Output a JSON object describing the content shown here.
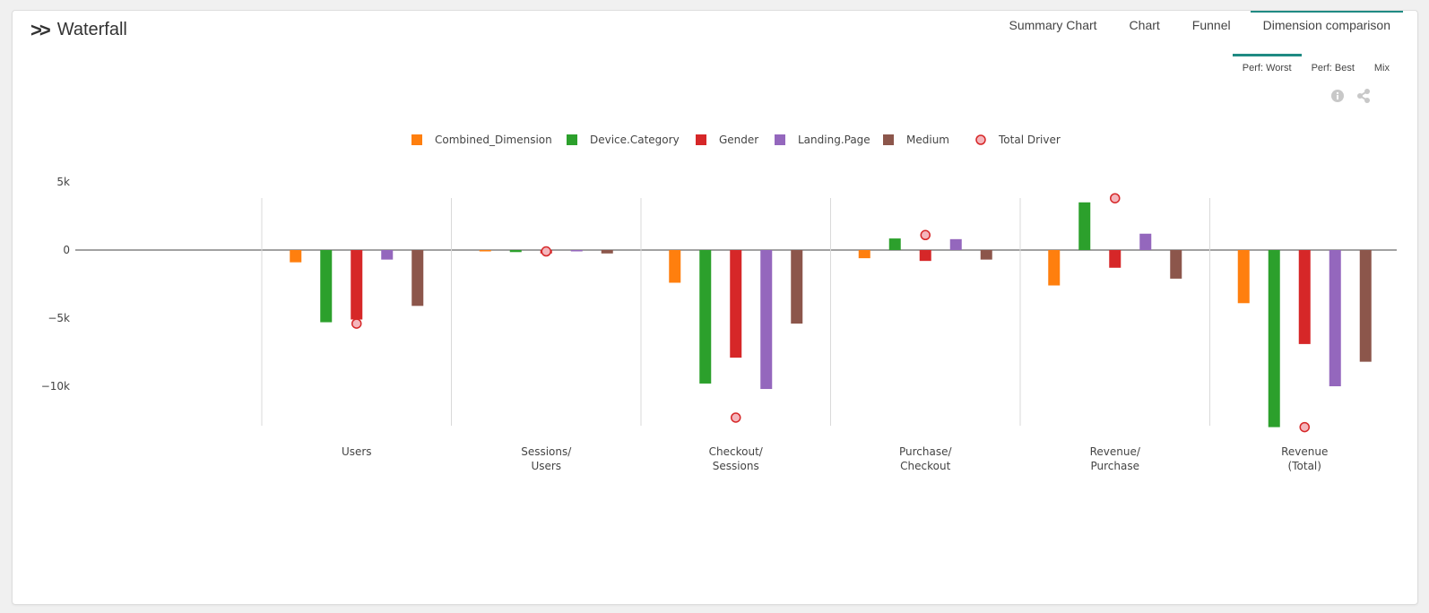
{
  "header": {
    "title": "Waterfall",
    "tabs": [
      {
        "label": "Summary Chart",
        "active": false
      },
      {
        "label": "Chart",
        "active": false
      },
      {
        "label": "Funnel",
        "active": false
      },
      {
        "label": "Dimension comparison",
        "active": true
      }
    ],
    "subtabs": [
      {
        "label": "Perf: Worst",
        "active": true
      },
      {
        "label": "Perf: Best",
        "active": false
      },
      {
        "label": "Mix",
        "active": false
      }
    ],
    "tools": [
      "info-icon",
      "share-icon"
    ]
  },
  "colors": {
    "accent": "#1f8a83",
    "Combined_Dimension": "#ff7f0e",
    "Device.Category": "#2ca02c",
    "Gender": "#d62728",
    "Landing.Page": "#9467bd",
    "Medium": "#8c564b",
    "Total Driver": "#d62728"
  },
  "chart_data": {
    "type": "bar",
    "categories": [
      [
        "Users"
      ],
      [
        "Sessions/",
        "Users"
      ],
      [
        "Checkout/",
        "Sessions"
      ],
      [
        "Purchase/",
        "Checkout"
      ],
      [
        "Revenue/",
        "Purchase"
      ],
      [
        "Revenue",
        "(Total)"
      ]
    ],
    "yticks": [
      5000,
      0,
      -5000,
      -10000
    ],
    "ytick_labels": [
      "5k",
      "0",
      "−5k",
      "−10k"
    ],
    "ylim": [
      -13000,
      5000
    ],
    "legend_position": "top",
    "series": [
      {
        "name": "Combined_Dimension",
        "values": [
          -900,
          -100,
          -2400,
          -600,
          -2600,
          -3900
        ]
      },
      {
        "name": "Device.Category",
        "values": [
          -5300,
          -150,
          -9800,
          850,
          3500,
          -13000
        ]
      },
      {
        "name": "Gender",
        "values": [
          -5100,
          -250,
          -7900,
          -800,
          -1300,
          -6900
        ]
      },
      {
        "name": "Landing.Page",
        "values": [
          -700,
          -50,
          -10200,
          800,
          1200,
          -10000
        ]
      },
      {
        "name": "Medium",
        "values": [
          -4100,
          -250,
          -5400,
          -700,
          -2100,
          -8200
        ]
      }
    ],
    "total_driver": {
      "name": "Total Driver",
      "values": [
        -5400,
        -100,
        -12300,
        1100,
        3800,
        -13000
      ]
    }
  }
}
